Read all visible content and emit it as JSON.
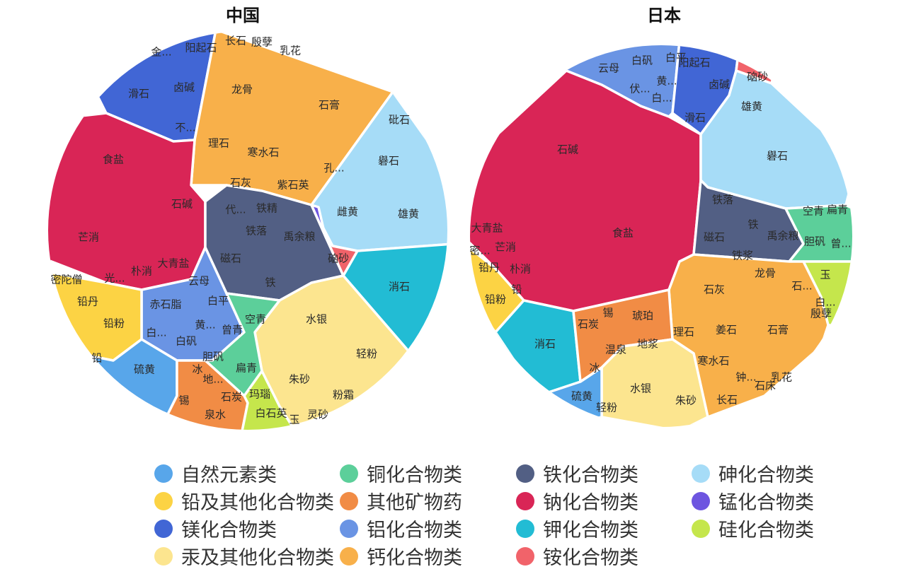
{
  "chart_data": [
    {
      "type": "voronoi-treemap",
      "title": "中国",
      "series": [
        {
          "name": "镁化合物类",
          "color": "#4166d5",
          "items": [
            "金...",
            "阳起石",
            "滑石",
            "卤碱",
            "不..."
          ]
        },
        {
          "name": "钙化合物类",
          "color": "#f8b04a",
          "items": [
            "长石",
            "殷孽",
            "乳花",
            "龙骨",
            "石膏",
            "理石",
            "寒水石",
            "孔...",
            "石灰",
            "紫石英"
          ]
        },
        {
          "name": "砷化合物类",
          "color": "#a6dcf7",
          "items": [
            "砒石",
            "礜石",
            "雌黄",
            "雄黄"
          ]
        },
        {
          "name": "钠化合物类",
          "color": "#d92556",
          "items": [
            "食盐",
            "石碱",
            "芒消",
            "大青盐",
            "朴消",
            "光..."
          ]
        },
        {
          "name": "铁化合物类",
          "color": "#525f84",
          "items": [
            "代...",
            "铁精",
            "铁落",
            "禹余粮",
            "磁石",
            "铁"
          ]
        },
        {
          "name": "锰化合物类",
          "color": "#6d55e0",
          "items": []
        },
        {
          "name": "铵化合物类",
          "color": "#f1636a",
          "items": [
            "硇砂"
          ]
        },
        {
          "name": "钾化合物类",
          "color": "#22bcd4",
          "items": [
            "消石"
          ]
        },
        {
          "name": "汞及其他化合物类",
          "color": "#fce58f",
          "items": [
            "水银",
            "轻粉",
            "朱砂",
            "粉霜",
            "灵砂"
          ]
        },
        {
          "name": "铝化合物类",
          "color": "#6a94e4",
          "items": [
            "云母",
            "赤石脂",
            "白平",
            "黄...",
            "白...",
            "白矾"
          ]
        },
        {
          "name": "铜化合物类",
          "color": "#5ccf9a",
          "items": [
            "空青",
            "曾青",
            "胆矾",
            "扁青"
          ]
        },
        {
          "name": "铅及其他化合物类",
          "color": "#fcd344",
          "items": [
            "密陀僧",
            "铅丹",
            "铅粉",
            "铅"
          ]
        },
        {
          "name": "自然元素类",
          "color": "#58a6ea",
          "items": [
            "硫黄"
          ]
        },
        {
          "name": "其他矿物药",
          "color": "#f18c45",
          "items": [
            "冰",
            "地...",
            "锡",
            "石炭",
            "泉水",
            "玛瑙"
          ]
        },
        {
          "name": "硅化合物类",
          "color": "#c5e64c",
          "items": [
            "白石英",
            "玉"
          ]
        }
      ]
    },
    {
      "type": "voronoi-treemap",
      "title": "日本",
      "series": [
        {
          "name": "铝化合物类",
          "color": "#6a94e4",
          "items": [
            "云母",
            "白矾",
            "白平",
            "黄...",
            "伏...",
            "白..."
          ]
        },
        {
          "name": "镁化合物类",
          "color": "#4166d5",
          "items": [
            "阳起石",
            "卤碱",
            "滑石"
          ]
        },
        {
          "name": "铵化合物类",
          "color": "#f1636a",
          "items": [
            "硇砂"
          ]
        },
        {
          "name": "钠化合物类",
          "color": "#d92556",
          "items": [
            "石碱",
            "食盐",
            "大青盐",
            "芒消",
            "朴消"
          ]
        },
        {
          "name": "砷化合物类",
          "color": "#a6dcf7",
          "items": [
            "雄黄",
            "礜石"
          ]
        },
        {
          "name": "铁化合物类",
          "color": "#525f84",
          "items": [
            "铁落",
            "铁",
            "磁石",
            "禹余粮",
            "铁浆"
          ]
        },
        {
          "name": "铜化合物类",
          "color": "#5ccf9a",
          "items": [
            "空青",
            "扁青",
            "胆矾",
            "曾..."
          ]
        },
        {
          "name": "硅化合物类",
          "color": "#c5e64c",
          "items": [
            "玉",
            "白..."
          ]
        },
        {
          "name": "钙化合物类",
          "color": "#f8b04a",
          "items": [
            "龙骨",
            "石灰",
            "石...",
            "殷孽",
            "理石",
            "姜石",
            "石膏",
            "寒水石",
            "钟...",
            "乳花",
            "石床",
            "长石"
          ]
        },
        {
          "name": "铅及其他化合物类",
          "color": "#fcd344",
          "items": [
            "密...",
            "铅丹",
            "铅",
            "铅粉"
          ]
        },
        {
          "name": "钾化合物类",
          "color": "#22bcd4",
          "items": [
            "消石"
          ]
        },
        {
          "name": "其他矿物药",
          "color": "#f18c45",
          "items": [
            "锡",
            "琥珀",
            "石炭",
            "温泉",
            "地浆",
            "冰"
          ]
        },
        {
          "name": "汞及其他化合物类",
          "color": "#fce58f",
          "items": [
            "水银",
            "朱砂"
          ]
        },
        {
          "name": "自然元素类",
          "color": "#58a6ea",
          "items": [
            "硫黄",
            "轻粉"
          ]
        }
      ]
    }
  ],
  "legend": [
    [
      {
        "label": "自然元素类",
        "color": "#58a6ea"
      },
      {
        "label": "铜化合物类",
        "color": "#5ccf9a"
      },
      {
        "label": "铁化合物类",
        "color": "#525f84"
      },
      {
        "label": "砷化合物类",
        "color": "#a6dcf7"
      }
    ],
    [
      {
        "label": "铅及其他化合物类",
        "color": "#fcd344"
      },
      {
        "label": "其他矿物药",
        "color": "#f18c45"
      },
      {
        "label": "钠化合物类",
        "color": "#d92556"
      },
      {
        "label": "锰化合物类",
        "color": "#6d55e0"
      }
    ],
    [
      {
        "label": "镁化合物类",
        "color": "#4166d5"
      },
      {
        "label": "铝化合物类",
        "color": "#6a94e4"
      },
      {
        "label": "钾化合物类",
        "color": "#22bcd4"
      },
      {
        "label": "硅化合物类",
        "color": "#c5e64c"
      }
    ],
    [
      {
        "label": "汞及其他化合物类",
        "color": "#fce58f"
      },
      {
        "label": "钙化合物类",
        "color": "#f8b04a"
      },
      {
        "label": "铵化合物类",
        "color": "#f1636a"
      }
    ]
  ]
}
